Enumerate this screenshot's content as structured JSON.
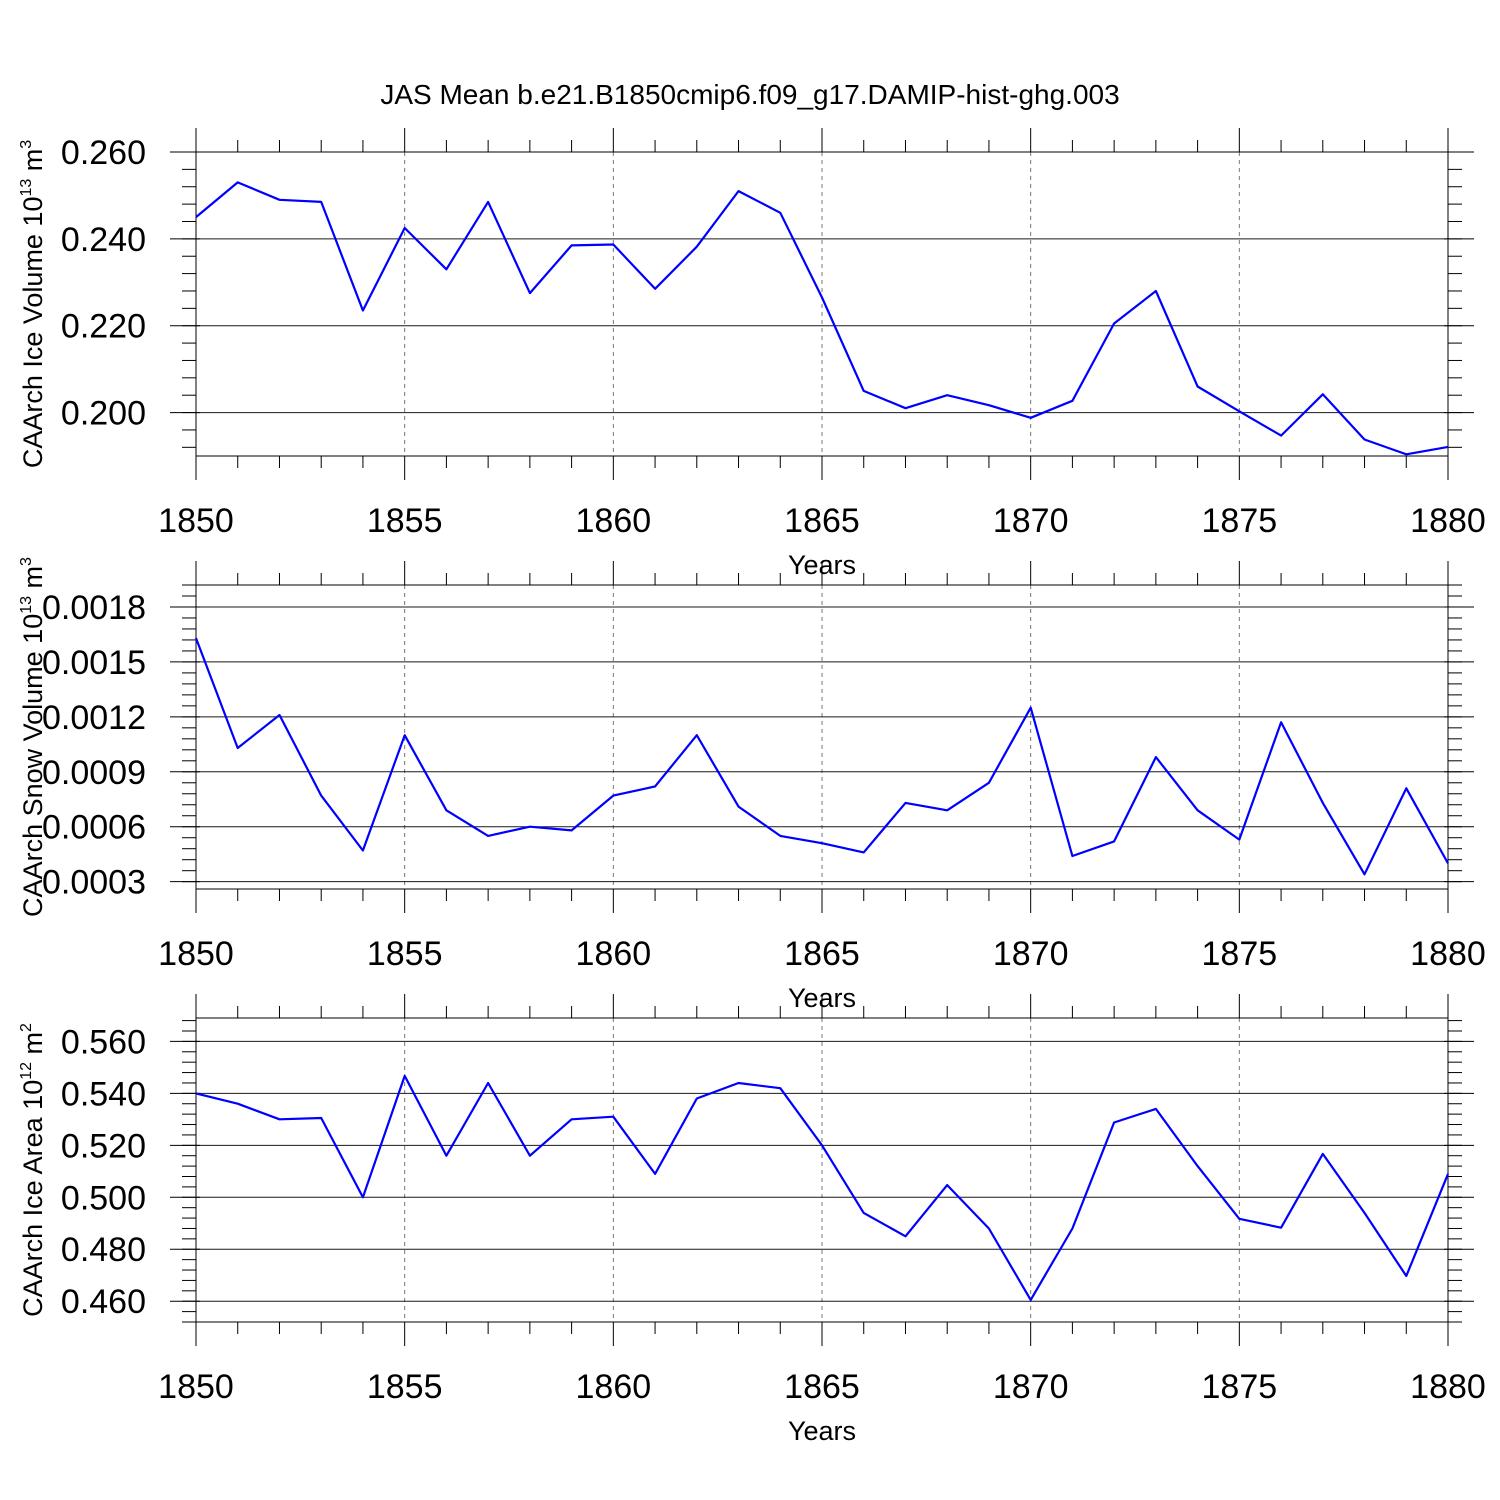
{
  "title": "JAS Mean b.e21.B1850cmip6.f09_g17.DAMIP-hist-ghg.003",
  "chart_data": [
    {
      "type": "line",
      "title": "JAS Mean b.e21.B1850cmip6.f09_g17.DAMIP-hist-ghg.003",
      "ylabel": {
        "base": "CAArch Ice Volume 10",
        "exp": "13",
        "unit": " m",
        "unit_exp": "3"
      },
      "xlabel": "Years",
      "xlim": [
        1850,
        1880
      ],
      "ylim": [
        0.19,
        0.26
      ],
      "yticks": [
        0.2,
        0.22,
        0.24,
        0.26
      ],
      "ytick_labels": [
        "0.200",
        "0.220",
        "0.240",
        "0.260"
      ],
      "xticks": [
        1850,
        1855,
        1860,
        1865,
        1870,
        1875,
        1880
      ],
      "xtick_labels": [
        "1850",
        "1855",
        "1860",
        "1865",
        "1870",
        "1875",
        "1880"
      ],
      "grid": "vertical dashed at labeled years",
      "color": "#0000ff",
      "x": [
        1850,
        1851,
        1852,
        1853,
        1854,
        1855,
        1856,
        1857,
        1858,
        1859,
        1860,
        1861,
        1862,
        1863,
        1864,
        1865,
        1866,
        1867,
        1868,
        1869,
        1870,
        1871,
        1872,
        1873,
        1874,
        1875,
        1876,
        1877,
        1878,
        1879,
        1880
      ],
      "values": [
        0.245,
        0.253,
        0.249,
        0.2485,
        0.2235,
        0.2425,
        0.233,
        0.2485,
        0.2275,
        0.2385,
        0.2387,
        0.2285,
        0.2382,
        0.251,
        0.246,
        0.2265,
        0.205,
        0.201,
        0.204,
        0.2017,
        0.1988,
        0.2027,
        0.2205,
        0.228,
        0.206,
        0.2003,
        0.1947,
        0.2042,
        0.1938,
        0.1904,
        0.1921
      ]
    },
    {
      "type": "line",
      "ylabel": {
        "base": "CAArch Snow Volume 10",
        "exp": "13",
        "unit": " m",
        "unit_exp": "3"
      },
      "xlabel": "Years",
      "xlim": [
        1850,
        1880
      ],
      "ylim": [
        0.00026,
        0.00192
      ],
      "yticks": [
        0.0003,
        0.0006,
        0.0009,
        0.0012,
        0.0015,
        0.0018
      ],
      "ytick_labels": [
        "0.0003",
        "0.0006",
        "0.0009",
        "0.0012",
        "0.0015",
        "0.0018"
      ],
      "xticks": [
        1850,
        1855,
        1860,
        1865,
        1870,
        1875,
        1880
      ],
      "xtick_labels": [
        "1850",
        "1855",
        "1860",
        "1865",
        "1870",
        "1875",
        "1880"
      ],
      "grid": "vertical dashed at labeled years",
      "color": "#0000ff",
      "x": [
        1850,
        1851,
        1852,
        1853,
        1854,
        1855,
        1856,
        1857,
        1858,
        1859,
        1860,
        1861,
        1862,
        1863,
        1864,
        1865,
        1866,
        1867,
        1868,
        1869,
        1870,
        1871,
        1872,
        1873,
        1874,
        1875,
        1876,
        1877,
        1878,
        1879,
        1880
      ],
      "values": [
        0.00163,
        0.00103,
        0.00121,
        0.00077,
        0.00047,
        0.0011,
        0.00069,
        0.00055,
        0.0006,
        0.00058,
        0.00077,
        0.00082,
        0.0011,
        0.00071,
        0.00055,
        0.00051,
        0.00046,
        0.00073,
        0.00069,
        0.00084,
        0.00125,
        0.00044,
        0.00052,
        0.00098,
        0.00069,
        0.00053,
        0.00117,
        0.00073,
        0.00034,
        0.00081,
        0.0004
      ]
    },
    {
      "type": "line",
      "ylabel": {
        "base": "CAArch Ice Area 10",
        "exp": "12",
        "unit": " m",
        "unit_exp": "2"
      },
      "xlabel": "Years",
      "xlim": [
        1850,
        1880
      ],
      "ylim": [
        0.452,
        0.569
      ],
      "yticks": [
        0.46,
        0.48,
        0.5,
        0.52,
        0.54,
        0.56
      ],
      "ytick_labels": [
        "0.460",
        "0.480",
        "0.500",
        "0.520",
        "0.540",
        "0.560"
      ],
      "xticks": [
        1850,
        1855,
        1860,
        1865,
        1870,
        1875,
        1880
      ],
      "xtick_labels": [
        "1850",
        "1855",
        "1860",
        "1865",
        "1870",
        "1875",
        "1880"
      ],
      "grid": "vertical dashed at labeled years",
      "color": "#0000ff",
      "x": [
        1850,
        1851,
        1852,
        1853,
        1854,
        1855,
        1856,
        1857,
        1858,
        1859,
        1860,
        1861,
        1862,
        1863,
        1864,
        1865,
        1866,
        1867,
        1868,
        1869,
        1870,
        1871,
        1872,
        1873,
        1874,
        1875,
        1876,
        1877,
        1878,
        1879,
        1880
      ],
      "values": [
        0.54,
        0.536,
        0.53,
        0.5305,
        0.5,
        0.5467,
        0.516,
        0.544,
        0.516,
        0.53,
        0.531,
        0.509,
        0.538,
        0.544,
        0.542,
        0.52,
        0.494,
        0.485,
        0.5047,
        0.488,
        0.4605,
        0.488,
        0.5288,
        0.534,
        0.512,
        0.4917,
        0.4883,
        0.5167,
        0.494,
        0.4697,
        0.509
      ]
    }
  ]
}
